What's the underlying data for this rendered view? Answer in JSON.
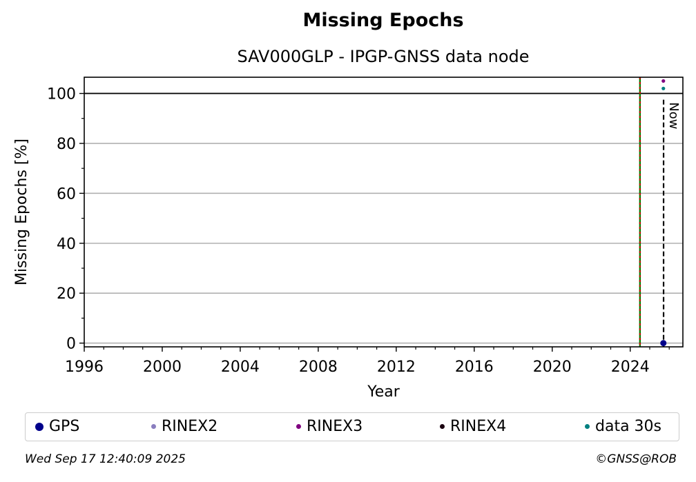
{
  "title": "Missing Epochs",
  "subtitle": "SAV000GLP - IPGP-GNSS data node",
  "footer": {
    "date": "Wed Sep 17 12:40:09 2025",
    "credit": "©GNSS@ROB"
  },
  "chart_data": {
    "type": "scatter",
    "xlabel": "Year",
    "ylabel": "Missing Epochs [%]",
    "xlim": [
      1996,
      2026.7
    ],
    "ylim": [
      -1.5,
      106.5
    ],
    "xticks": [
      1996,
      2000,
      2004,
      2008,
      2012,
      2016,
      2020,
      2024
    ],
    "yticks": [
      0,
      20,
      40,
      60,
      80,
      100
    ],
    "grid": "horizontal",
    "reference_line_y": 100,
    "start_line": {
      "x": 2024.5,
      "colors": [
        "#008000",
        "#cc0000"
      ]
    },
    "now_line": {
      "x": 2025.71,
      "label": "Now"
    },
    "legend_position": "bottom",
    "series": [
      {
        "name": "GPS",
        "color": "#00008b",
        "marker": "large",
        "points": [
          [
            2025.7,
            0
          ]
        ]
      },
      {
        "name": "RINEX2",
        "color": "#8a7ebf",
        "marker": "small",
        "points": []
      },
      {
        "name": "RINEX3",
        "color": "#800080",
        "marker": "small",
        "points": [
          [
            2025.7,
            105
          ]
        ]
      },
      {
        "name": "RINEX4",
        "color": "#1a0010",
        "marker": "small",
        "points": []
      },
      {
        "name": "data 30s",
        "color": "#008080",
        "marker": "small",
        "points": [
          [
            2025.7,
            102
          ]
        ]
      }
    ]
  }
}
